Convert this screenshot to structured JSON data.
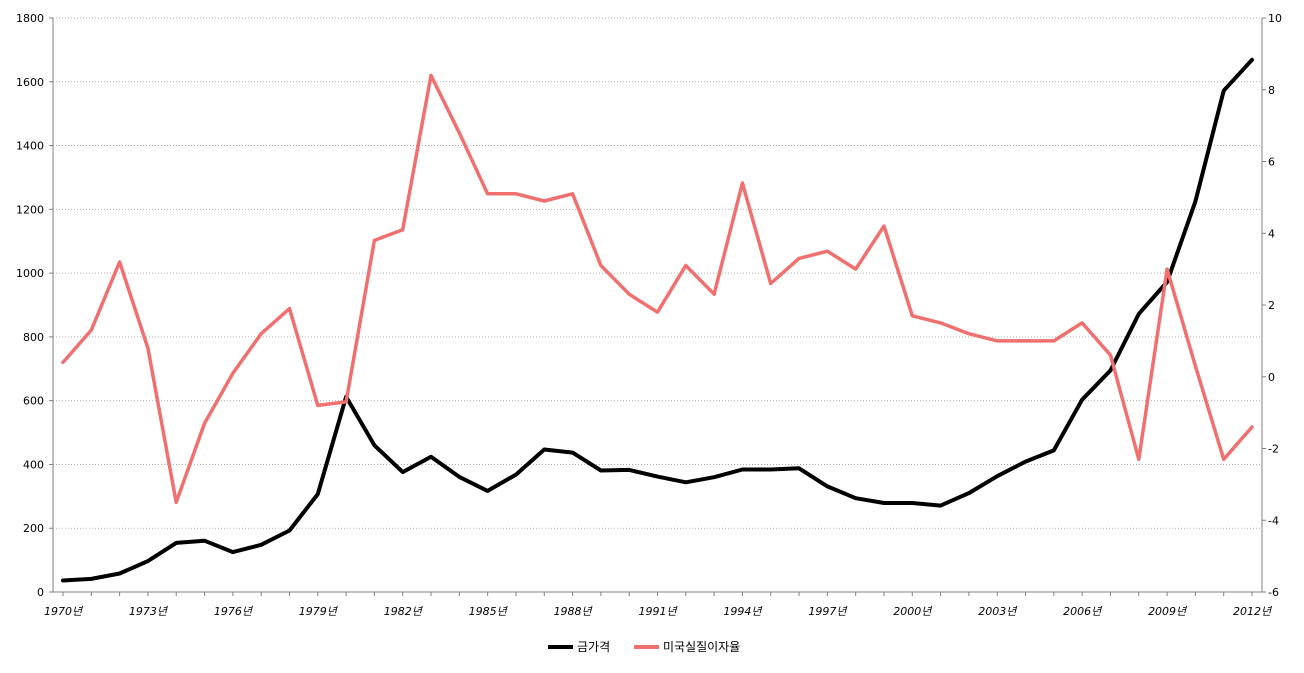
{
  "chart_data": {
    "type": "line",
    "title": "",
    "x": [
      "1970년",
      "1971년",
      "1972년",
      "1973년",
      "1974년",
      "1975년",
      "1976년",
      "1977년",
      "1978년",
      "1979년",
      "1980년",
      "1981년",
      "1982년",
      "1983년",
      "1984년",
      "1985년",
      "1986년",
      "1987년",
      "1988년",
      "1989년",
      "1990년",
      "1991년",
      "1992년",
      "1993년",
      "1994년",
      "1995년",
      "1996년",
      "1997년",
      "1998년",
      "1999년",
      "2000년",
      "2001년",
      "2002년",
      "2003년",
      "2004년",
      "2005년",
      "2006년",
      "2007년",
      "2008년",
      "2009년",
      "2010년",
      "2011년",
      "2012년"
    ],
    "xtick_labels": [
      "1970년",
      "1973년",
      "1976년",
      "1979년",
      "1982년",
      "1985년",
      "1988년",
      "1991년",
      "1994년",
      "1997년",
      "2000년",
      "2003년",
      "2006년",
      "2009년",
      "2012년"
    ],
    "y_left": {
      "ylim": [
        0,
        1800
      ],
      "ticks": [
        "0",
        "200",
        "400",
        "600",
        "800",
        "1000",
        "1200",
        "1400",
        "1600",
        "1800"
      ]
    },
    "y_right": {
      "ylim": [
        -6,
        10
      ],
      "ticks": [
        "-6",
        "-4",
        "-2",
        "0",
        "2",
        "4",
        "6",
        "8",
        "10"
      ]
    },
    "grid": "horizontal-dotted",
    "legend": "bottom",
    "series": [
      {
        "name": "금가격",
        "axis": "left",
        "color": "#000000",
        "values": [
          36,
          41,
          58,
          97,
          154,
          161,
          125,
          148,
          193,
          307,
          612,
          460,
          376,
          424,
          361,
          317,
          368,
          447,
          437,
          381,
          383,
          362,
          344,
          360,
          384,
          384,
          388,
          331,
          294,
          279,
          279,
          271,
          310,
          363,
          409,
          444,
          603,
          695,
          872,
          972,
          1225,
          1572,
          1669
        ]
      },
      {
        "name": "미국실질이자율",
        "axis": "right",
        "color": "#f07070",
        "values": [
          0.4,
          1.3,
          3.2,
          0.8,
          -3.5,
          -1.3,
          0.1,
          1.2,
          1.9,
          -0.8,
          -0.7,
          3.8,
          4.1,
          8.4,
          6.8,
          5.1,
          5.1,
          4.9,
          5.1,
          3.1,
          2.3,
          1.8,
          3.1,
          2.3,
          5.4,
          2.6,
          3.3,
          3.5,
          3.0,
          4.2,
          1.7,
          1.5,
          1.2,
          1.0,
          1.0,
          1.0,
          1.5,
          0.6,
          -2.3,
          3.0,
          0.3,
          -2.3,
          -1.4
        ]
      }
    ]
  }
}
